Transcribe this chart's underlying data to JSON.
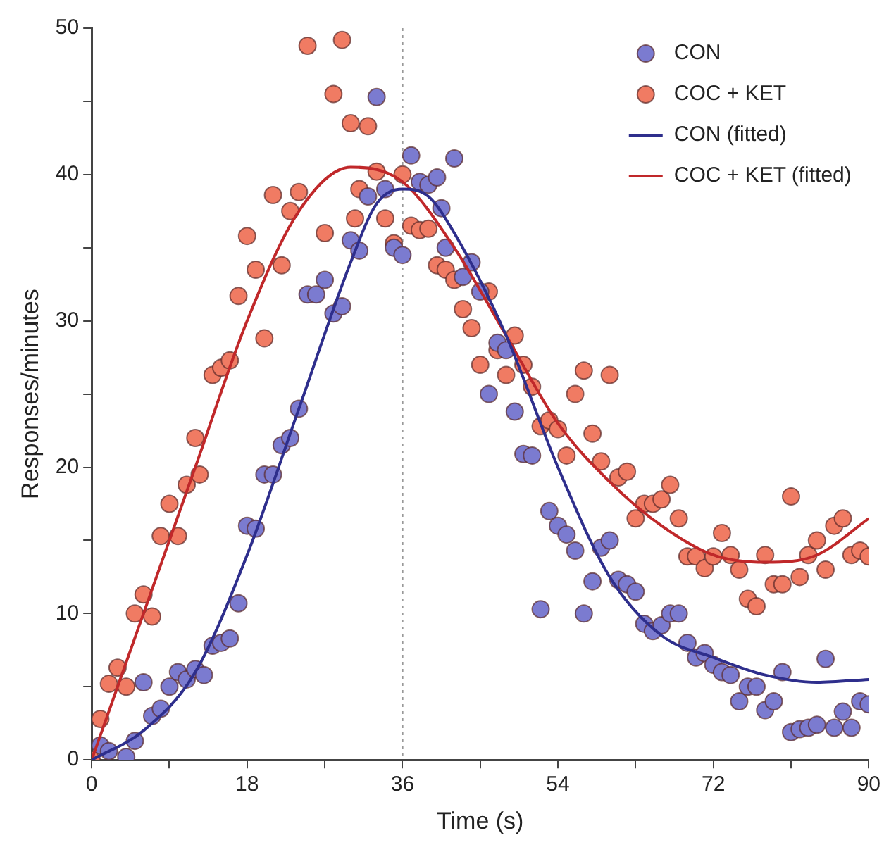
{
  "chart_data": {
    "type": "scatter",
    "xlabel": "Time (s)",
    "ylabel": "Responses/minutes",
    "xlim": [
      0,
      90
    ],
    "ylim": [
      0,
      50
    ],
    "xticks": [
      0,
      {
        "value": 9,
        "label": null
      },
      18,
      {
        "value": 27,
        "label": null
      },
      36,
      {
        "value": 45,
        "label": null
      },
      54,
      {
        "value": 63,
        "label": null
      },
      72,
      {
        "value": 81,
        "label": null
      },
      90
    ],
    "yticks": [
      0,
      {
        "value": 5,
        "label": null
      },
      10,
      {
        "value": 15,
        "label": null
      },
      20,
      {
        "value": 25,
        "label": null
      },
      30,
      {
        "value": 35,
        "label": null
      },
      40,
      {
        "value": 45,
        "label": null
      },
      50
    ],
    "grid": false,
    "legend": "top right",
    "marker": "circle",
    "ref_lines": [
      {
        "axis": "x",
        "value": 36,
        "color": "#999999",
        "line_style": "dotted"
      }
    ],
    "series": [
      {
        "name": "CON",
        "type": "scatter",
        "color": "#7b7bd0",
        "x": [
          1,
          2,
          4,
          5,
          6,
          7,
          8,
          9,
          10,
          11,
          12,
          13,
          14,
          15,
          16,
          17,
          18,
          19,
          20,
          21,
          22,
          23,
          24,
          25,
          26,
          27,
          28,
          29,
          30,
          31,
          32,
          33,
          34,
          35,
          36,
          37,
          38,
          39,
          40,
          40.5,
          41,
          42,
          43,
          44,
          45,
          46,
          47,
          48,
          49,
          50,
          51,
          52,
          53,
          54,
          55,
          56,
          57,
          58,
          59,
          60,
          61,
          62,
          63,
          64,
          65,
          66,
          67,
          68,
          69,
          70,
          71,
          72,
          73,
          74,
          75,
          76,
          77,
          78,
          79,
          80,
          81,
          82,
          83,
          84,
          85,
          86,
          87,
          88,
          89,
          90
        ],
        "values": [
          1,
          0.6,
          0.2,
          1.3,
          5.3,
          3,
          3.5,
          5,
          6,
          5.5,
          6.2,
          5.8,
          7.8,
          8,
          8.3,
          10.7,
          16,
          15.8,
          19.5,
          19.5,
          21.5,
          22,
          24,
          31.8,
          31.8,
          32.8,
          30.5,
          31,
          35.5,
          34.8,
          38.5,
          45.3,
          39,
          35,
          34.5,
          41.3,
          39.5,
          39.3,
          39.8,
          37.7,
          35,
          41.1,
          33,
          34,
          32,
          25,
          28.5,
          28,
          23.8,
          20.9,
          20.8,
          10.3,
          17,
          16,
          15.4,
          14.3,
          10,
          12.2,
          14.5,
          15,
          12.3,
          12,
          11.5,
          9.3,
          8.8,
          9.2,
          10,
          10,
          8,
          7,
          7.3,
          6.5,
          6,
          5.8,
          4,
          5,
          5,
          3.4,
          4,
          6,
          1.9,
          2.1,
          2.2,
          2.4,
          6.9,
          2.2,
          3.3,
          2.2,
          4,
          3.8
        ]
      },
      {
        "name": "COC + KET",
        "type": "scatter",
        "color": "#f07b63",
        "x": [
          0,
          1,
          2,
          3,
          4,
          5,
          6,
          7,
          8,
          9,
          10,
          11,
          12,
          12.5,
          14,
          15,
          16,
          17,
          18,
          19,
          20,
          21,
          22,
          23,
          24,
          25,
          27,
          28,
          29,
          30,
          30.5,
          31,
          32,
          33,
          34,
          35,
          36,
          37,
          38,
          39,
          40,
          41,
          42,
          43,
          44,
          45,
          46,
          47,
          48,
          49,
          50,
          51,
          52,
          53,
          54,
          55,
          56,
          57,
          58,
          59,
          60,
          61,
          62,
          63,
          64,
          65,
          66,
          67,
          68,
          69,
          70,
          71,
          72,
          73,
          74,
          75,
          76,
          77,
          78,
          79,
          80,
          81,
          82,
          83,
          84,
          85,
          86,
          87,
          88,
          89,
          90
        ],
        "values": [
          0,
          2.8,
          5.2,
          6.3,
          5,
          10,
          11.3,
          9.8,
          15.3,
          17.5,
          15.3,
          18.8,
          22,
          19.5,
          26.3,
          26.8,
          27.3,
          31.7,
          35.8,
          33.5,
          28.8,
          38.6,
          33.8,
          37.5,
          38.8,
          48.8,
          36,
          45.5,
          49.2,
          43.5,
          37,
          39,
          43.3,
          40.2,
          37,
          35.3,
          40,
          36.5,
          36.2,
          36.3,
          33.8,
          33.5,
          32.8,
          30.8,
          29.5,
          27,
          32,
          28,
          26.3,
          29,
          27,
          25.5,
          22.8,
          23.2,
          22.6,
          20.8,
          25,
          26.6,
          22.3,
          20.4,
          26.3,
          19.3,
          19.7,
          16.5,
          17.5,
          17.5,
          17.8,
          18.8,
          16.5,
          13.9,
          13.9,
          13.1,
          13.9,
          15.5,
          14,
          13,
          11,
          10.5,
          14,
          12,
          12,
          18,
          12.5,
          14,
          15,
          13,
          16,
          16.5,
          14,
          14.3,
          13.9
        ]
      },
      {
        "name": "CON (fitted)",
        "type": "line",
        "color": "#2e2e8c",
        "marker": "none",
        "x": [
          0,
          6,
          12,
          18,
          24,
          30,
          33,
          36,
          39,
          42,
          48,
          54,
          60,
          66,
          72,
          78,
          84,
          90
        ],
        "values": [
          0,
          2,
          6,
          14,
          24,
          34,
          38,
          39,
          38.5,
          36,
          29,
          20,
          12.5,
          8.5,
          7,
          5.8,
          5.3,
          5.5
        ]
      },
      {
        "name": "COC + KET (fitted)",
        "type": "line",
        "color": "#c0282a",
        "marker": "none",
        "x": [
          0,
          6,
          12,
          18,
          24,
          30,
          36,
          42,
          48,
          54,
          60,
          66,
          72,
          78,
          84,
          90
        ],
        "values": [
          0,
          10,
          20,
          30,
          37.5,
          40.5,
          39.5,
          35,
          29,
          23,
          19,
          16,
          14,
          13.5,
          14,
          16.5
        ]
      }
    ]
  }
}
